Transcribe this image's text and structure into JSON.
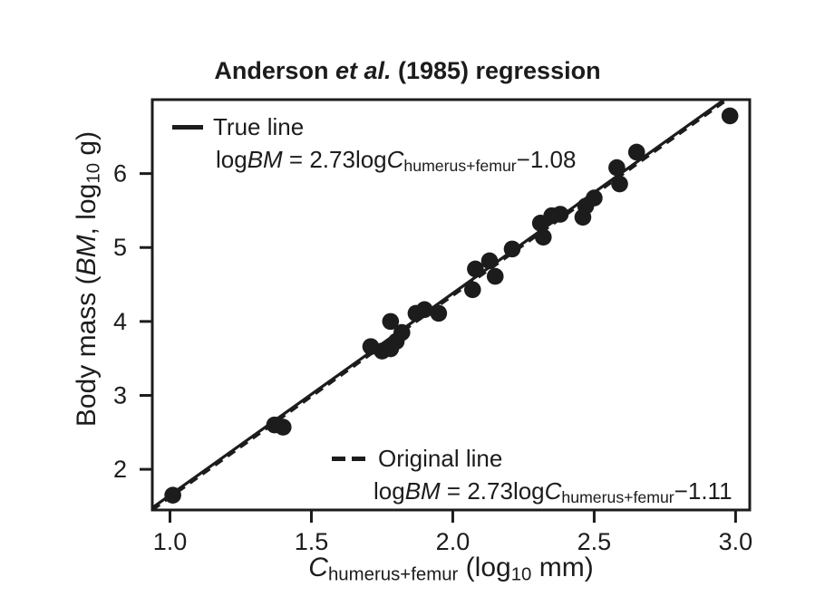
{
  "title": {
    "text": "Anderson et al. (1985) regression",
    "parts": [
      {
        "t": "Anderson "
      },
      {
        "t": "et al.",
        "i": true
      },
      {
        "t": " (1985) regression"
      }
    ]
  },
  "axes": {
    "x": {
      "label_parts": [
        {
          "t": "C",
          "i": true
        },
        {
          "t": "humerus+femur",
          "sub": true
        },
        {
          "t": " (log"
        },
        {
          "t": "10",
          "sub": true
        },
        {
          "t": " mm)"
        }
      ]
    },
    "y": {
      "label_parts": [
        {
          "t": "Body mass ("
        },
        {
          "t": "BM",
          "i": true
        },
        {
          "t": ", log"
        },
        {
          "t": "10",
          "sub": true
        },
        {
          "t": " g)"
        }
      ]
    }
  },
  "legends": {
    "true_line": {
      "label": "True line",
      "eq_parts": [
        {
          "t": "log"
        },
        {
          "t": "BM",
          "i": true
        },
        {
          "t": " = 2.73log"
        },
        {
          "t": "C",
          "i": true
        },
        {
          "t": "humerus+femur",
          "sub": true
        },
        {
          "t": "−1.08"
        }
      ]
    },
    "original_line": {
      "label": "Original line",
      "eq_parts": [
        {
          "t": "log"
        },
        {
          "t": "BM",
          "i": true
        },
        {
          "t": " = 2.73log"
        },
        {
          "t": "C",
          "i": true
        },
        {
          "t": "humerus+femur",
          "sub": true
        },
        {
          "t": "−1.11"
        }
      ]
    }
  },
  "chart_data": {
    "type": "scatter",
    "title": "Anderson et al. (1985) regression",
    "xlabel": "C_humerus+femur (log10 mm)",
    "ylabel": "Body mass (BM, log10 g)",
    "xlim": [
      0.9375,
      3.05
    ],
    "ylim": [
      1.45,
      7.0
    ],
    "xticks": [
      1.0,
      1.5,
      2.0,
      2.5,
      3.0
    ],
    "xtick_labels": [
      "1.0",
      "1.5",
      "2.0",
      "2.5",
      "3.0"
    ],
    "yticks": [
      2,
      3,
      4,
      5,
      6
    ],
    "ytick_labels": [
      "2",
      "3",
      "4",
      "5",
      "6"
    ],
    "grid": false,
    "legend_position": "inside: upper-left and lower-right",
    "marker": {
      "shape": "circle",
      "color": "#1c1c1c",
      "radius_px": 9.3
    },
    "points": [
      [
        1.01,
        1.65
      ],
      [
        1.37,
        2.6
      ],
      [
        1.4,
        2.57
      ],
      [
        1.71,
        3.66
      ],
      [
        1.75,
        3.6
      ],
      [
        1.78,
        3.63
      ],
      [
        1.8,
        3.73
      ],
      [
        1.82,
        3.85
      ],
      [
        1.78,
        4.0
      ],
      [
        1.87,
        4.11
      ],
      [
        1.9,
        4.16
      ],
      [
        1.95,
        4.11
      ],
      [
        2.07,
        4.43
      ],
      [
        2.08,
        4.71
      ],
      [
        2.13,
        4.82
      ],
      [
        2.15,
        4.61
      ],
      [
        2.21,
        4.98
      ],
      [
        2.31,
        5.33
      ],
      [
        2.32,
        5.14
      ],
      [
        2.35,
        5.43
      ],
      [
        2.38,
        5.45
      ],
      [
        2.46,
        5.41
      ],
      [
        2.47,
        5.56
      ],
      [
        2.5,
        5.67
      ],
      [
        2.58,
        6.08
      ],
      [
        2.59,
        5.86
      ],
      [
        2.65,
        6.29
      ],
      [
        2.98,
        6.78
      ]
    ],
    "lines": [
      {
        "name": "True line",
        "equation": "logBM = 2.73logC_humerus+femur − 1.08",
        "slope": 2.73,
        "intercept": -1.08,
        "style": "solid",
        "color": "#1c1c1c"
      },
      {
        "name": "Original line",
        "equation": "logBM = 2.73logC_humerus+femur − 1.11",
        "slope": 2.73,
        "intercept": -1.11,
        "style": "dashed",
        "color": "#1c1c1c"
      }
    ]
  }
}
